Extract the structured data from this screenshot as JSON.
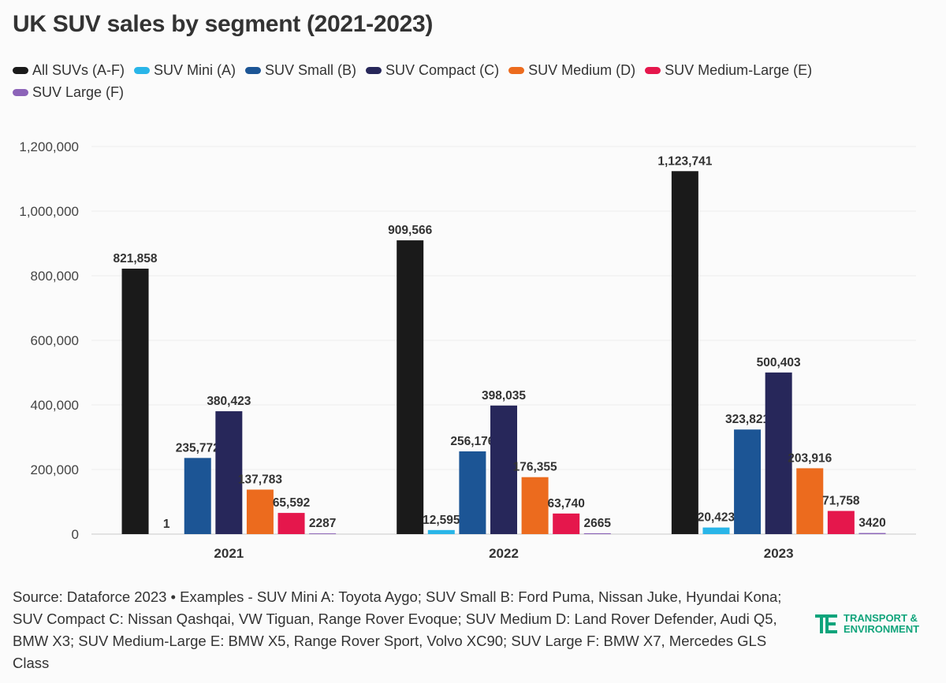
{
  "title": "UK SUV sales by segment (2021-2023)",
  "footer": {
    "source": "Source: Dataforce 2023 • Examples - SUV Mini A: Toyota Aygo; SUV Small B: Ford Puma, Nissan Juke, Hyundai Kona; SUV Compact C: Nissan Qashqai, VW Tiguan, Range Rover Evoque; SUV Medium D: Land Rover Defender, Audi Q5, BMW X3; SUV Medium-Large E: BMW X5, Range Rover Sport, Volvo XC90; SUV Large F: BMW X7, Mercedes GLS Class"
  },
  "logo": {
    "icon": "te-logo-icon",
    "line1": "TRANSPORT &",
    "line2": "ENVIRONMENT",
    "color": "#0fa47b"
  },
  "chart_data": {
    "type": "bar",
    "title": "UK SUV sales by segment (2021-2023)",
    "categories": [
      "2021",
      "2022",
      "2023"
    ],
    "series": [
      {
        "name": "All SUVs (A-F)",
        "color": "#1a1a1a",
        "values": [
          821858,
          909566,
          1123741
        ],
        "labels": [
          "821,858",
          "909,566",
          "1,123,741"
        ]
      },
      {
        "name": "SUV Mini (A)",
        "color": "#29b5e8",
        "values": [
          1,
          12595,
          20423
        ],
        "labels": [
          "1",
          "12,595",
          "20,423"
        ]
      },
      {
        "name": "SUV Small (B)",
        "color": "#1c5595",
        "values": [
          235772,
          256176,
          323821
        ],
        "labels": [
          "235,772",
          "256,176",
          "323,821"
        ]
      },
      {
        "name": "SUV Compact (C)",
        "color": "#27275a",
        "values": [
          380423,
          398035,
          500403
        ],
        "labels": [
          "380,423",
          "398,035",
          "500,403"
        ]
      },
      {
        "name": "SUV Medium (D)",
        "color": "#ec6b1e",
        "values": [
          137783,
          176355,
          203916
        ],
        "labels": [
          "137,783",
          "176,355",
          "203,916"
        ]
      },
      {
        "name": "SUV Medium-Large (E)",
        "color": "#e5174c",
        "values": [
          65592,
          63740,
          71758
        ],
        "labels": [
          "65,592",
          "63,740",
          "71,758"
        ]
      },
      {
        "name": "SUV Large (F)",
        "color": "#8c63b8",
        "values": [
          2287,
          2665,
          3420
        ],
        "labels": [
          "2287",
          "2665",
          "3420"
        ]
      }
    ],
    "ylim": [
      0,
      1200000
    ],
    "yticks": [
      0,
      200000,
      400000,
      600000,
      800000,
      1000000,
      1200000
    ],
    "ytick_labels": [
      "0",
      "200,000",
      "400,000",
      "600,000",
      "800,000",
      "1,000,000",
      "1,200,000"
    ],
    "grid": true,
    "legend_position": "top-left"
  }
}
